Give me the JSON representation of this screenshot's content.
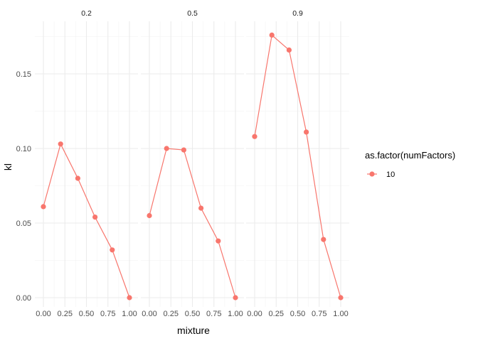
{
  "chart_data": {
    "type": "line",
    "facet_var_values": [
      "0.2",
      "0.5",
      "0.9"
    ],
    "xlabel": "mixture",
    "ylabel": "kl",
    "x_ticks": [
      "0.00",
      "0.25",
      "0.50",
      "0.75",
      "1.00"
    ],
    "y_ticks": [
      "0.00",
      "0.05",
      "0.10",
      "0.15"
    ],
    "xlim": [
      0,
      1
    ],
    "ylim": [
      0,
      0.18
    ],
    "grid": true,
    "legend": {
      "title": "as.factor(numFactors)",
      "position": "right",
      "entries": [
        {
          "label": "10",
          "color": "#F8766D"
        }
      ]
    },
    "color": "#F8766D",
    "x": [
      0.0,
      0.2,
      0.4,
      0.6,
      0.8,
      1.0
    ],
    "panels": [
      {
        "facet": "0.2",
        "series": [
          {
            "name": "10",
            "values": [
              0.061,
              0.103,
              0.08,
              0.054,
              0.032,
              0.0
            ]
          }
        ]
      },
      {
        "facet": "0.5",
        "series": [
          {
            "name": "10",
            "values": [
              0.055,
              0.1,
              0.099,
              0.06,
              0.038,
              0.0
            ]
          }
        ]
      },
      {
        "facet": "0.9",
        "series": [
          {
            "name": "10",
            "values": [
              0.108,
              0.176,
              0.166,
              0.111,
              0.039,
              0.0
            ]
          }
        ]
      }
    ]
  }
}
